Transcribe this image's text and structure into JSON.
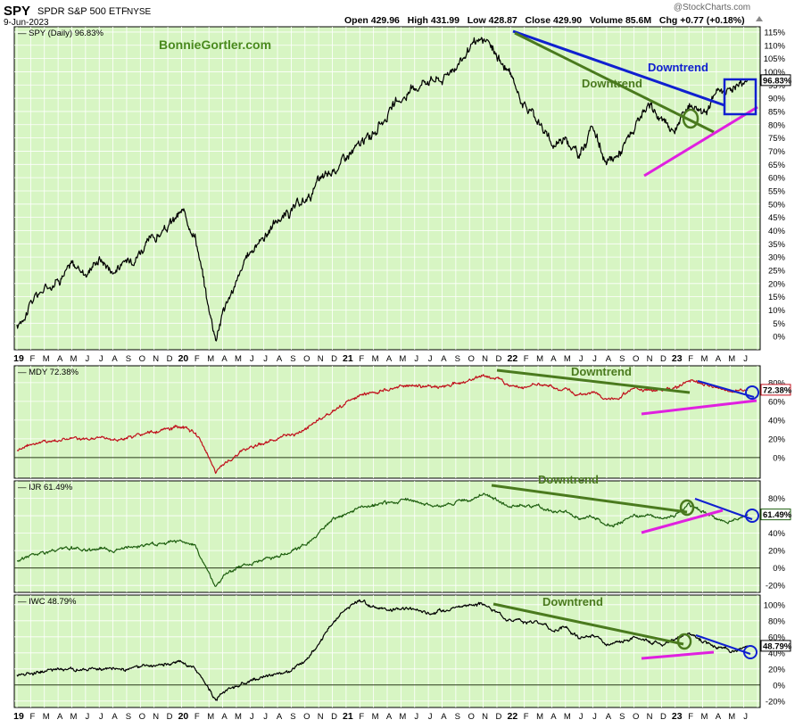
{
  "header": {
    "symbol": "SPY",
    "name": "SPDR S&P 500 ETF",
    "exchange": "NYSE",
    "date": "9-Jun-2023",
    "quote": "Open 429.96   High 431.99   Low 428.87   Close 429.90   Volume 85.6M   Chg +0.77 (+0.18%)",
    "quote_arrow": "up-arrow-icon",
    "logo": "@StockCharts.com",
    "watermark": "BonnieGortler.com"
  },
  "colors": {
    "panel_bg": "#d7f5c3",
    "grid": "#ffffff",
    "spy_line": "#000000",
    "mdy_line": "#c0101c",
    "ijr_line": "#1f5f10",
    "iwc_line": "#000000",
    "downtrend_green": "#4a7a1e",
    "downtrend_blue": "#1020d0",
    "uptrend_magenta": "#e020e0"
  },
  "x_axis": {
    "labels": [
      "19",
      "F",
      "M",
      "A",
      "M",
      "J",
      "J",
      "A",
      "S",
      "O",
      "N",
      "D",
      "20",
      "F",
      "M",
      "A",
      "M",
      "J",
      "J",
      "A",
      "S",
      "O",
      "N",
      "D",
      "21",
      "F",
      "M",
      "A",
      "M",
      "J",
      "J",
      "A",
      "S",
      "O",
      "N",
      "D",
      "22",
      "F",
      "M",
      "A",
      "M",
      "J",
      "J",
      "A",
      "S",
      "O",
      "N",
      "D",
      "23",
      "F",
      "M",
      "A",
      "M",
      "J"
    ]
  },
  "chart_data": [
    {
      "type": "line",
      "legend": "SPY (Daily) 96.83%",
      "last_value_label": "96.83%",
      "ylim": [
        -5,
        117
      ],
      "yticks": [
        "0%",
        "5%",
        "10%",
        "15%",
        "20%",
        "25%",
        "30%",
        "35%",
        "40%",
        "45%",
        "50%",
        "55%",
        "60%",
        "65%",
        "70%",
        "75%",
        "80%",
        "85%",
        "90%",
        "95%",
        "100%",
        "105%",
        "110%",
        "115%"
      ],
      "x_months": [
        0,
        1,
        2,
        3,
        4,
        5,
        6,
        7,
        8,
        9,
        10,
        11,
        12,
        13,
        14,
        14.5,
        15,
        16,
        17,
        18,
        19,
        20,
        21,
        22,
        23,
        24,
        25,
        26,
        27,
        28,
        29,
        30,
        31,
        32,
        33,
        34,
        35,
        36,
        37,
        38,
        39,
        40,
        41,
        42,
        43,
        44,
        45,
        46,
        47,
        48,
        49,
        50,
        51,
        52,
        53.3
      ],
      "values": [
        3,
        13,
        18,
        22,
        27,
        24,
        30,
        25,
        28,
        33,
        37,
        41,
        47,
        39,
        10,
        0,
        10,
        20,
        32,
        38,
        44,
        47,
        51,
        58,
        62,
        68,
        72,
        77,
        84,
        89,
        94,
        98,
        97,
        103,
        108,
        112,
        106,
        98,
        88,
        82,
        72,
        76,
        68,
        80,
        64,
        70,
        78,
        86,
        82,
        78,
        88,
        86,
        91,
        94,
        96.83
      ],
      "annotations": [
        {
          "text": "Downtrend",
          "color": "#4a7a1e"
        },
        {
          "text": "Downtrend",
          "color": "#1020d0"
        }
      ]
    },
    {
      "type": "line",
      "legend": "MDY 72.38%",
      "last_value_label": "72.38%",
      "ylim": [
        -22,
        98
      ],
      "yticks": [
        "0%",
        "20%",
        "40%",
        "60%",
        "80%"
      ],
      "x_months": [
        0,
        1,
        2,
        3,
        4,
        5,
        6,
        7,
        8,
        9,
        10,
        11,
        12,
        13,
        14,
        14.5,
        15,
        16,
        17,
        18,
        19,
        20,
        21,
        22,
        23,
        24,
        25,
        26,
        27,
        28,
        29,
        30,
        31,
        32,
        33,
        34,
        35,
        36,
        37,
        38,
        39,
        40,
        41,
        42,
        43,
        44,
        45,
        46,
        47,
        48,
        49,
        50,
        51,
        52,
        53.3
      ],
      "values": [
        8,
        15,
        17,
        19,
        21,
        18,
        22,
        19,
        21,
        24,
        27,
        30,
        33,
        26,
        2,
        -16,
        -8,
        2,
        12,
        16,
        20,
        24,
        30,
        40,
        50,
        58,
        65,
        70,
        72,
        76,
        78,
        76,
        76,
        80,
        82,
        88,
        84,
        78,
        76,
        78,
        74,
        74,
        66,
        70,
        62,
        66,
        74,
        72,
        74,
        74,
        84,
        78,
        74,
        70,
        72.38
      ],
      "annotations": [
        {
          "text": "Downtrend",
          "color": "#4a7a1e"
        }
      ]
    },
    {
      "type": "line",
      "legend": "IJR 61.49%",
      "last_value_label": "61.49%",
      "ylim": [
        -28,
        100
      ],
      "yticks": [
        "-20%",
        "0%",
        "20%",
        "40%",
        "60%",
        "80%"
      ],
      "x_months": [
        0,
        1,
        2,
        3,
        4,
        5,
        6,
        7,
        8,
        9,
        10,
        11,
        12,
        13,
        14,
        14.5,
        15,
        16,
        17,
        18,
        19,
        20,
        21,
        22,
        23,
        24,
        25,
        26,
        27,
        28,
        29,
        30,
        31,
        32,
        33,
        34,
        35,
        36,
        37,
        38,
        39,
        40,
        41,
        42,
        43,
        44,
        45,
        46,
        47,
        48,
        49,
        50,
        51,
        52,
        53.3
      ],
      "values": [
        8,
        15,
        18,
        20,
        22,
        20,
        23,
        21,
        23,
        25,
        28,
        30,
        32,
        24,
        -5,
        -22,
        -10,
        0,
        6,
        10,
        14,
        18,
        26,
        40,
        54,
        62,
        68,
        72,
        74,
        78,
        76,
        72,
        72,
        76,
        78,
        86,
        78,
        72,
        70,
        70,
        64,
        66,
        56,
        60,
        48,
        52,
        62,
        60,
        58,
        60,
        72,
        64,
        56,
        52,
        61.49
      ],
      "annotations": [
        {
          "text": "Downtrend",
          "color": "#4a7a1e"
        }
      ]
    },
    {
      "type": "line",
      "legend": "IWC 48.79%",
      "last_value_label": "48.79%",
      "ylim": [
        -28,
        112
      ],
      "yticks": [
        "-20%",
        "0%",
        "20%",
        "40%",
        "60%",
        "80%",
        "100%"
      ],
      "x_months": [
        0,
        1,
        2,
        3,
        4,
        5,
        6,
        7,
        8,
        9,
        10,
        11,
        12,
        13,
        14,
        14.5,
        15,
        16,
        17,
        18,
        19,
        20,
        21,
        22,
        23,
        24,
        25,
        26,
        27,
        28,
        29,
        30,
        31,
        32,
        33,
        34,
        35,
        36,
        37,
        38,
        39,
        40,
        41,
        42,
        43,
        44,
        45,
        46,
        47,
        48,
        49,
        50,
        51,
        52,
        53.3
      ],
      "values": [
        12,
        16,
        18,
        20,
        20,
        18,
        20,
        18,
        20,
        22,
        24,
        26,
        28,
        22,
        -4,
        -18,
        -8,
        -2,
        4,
        10,
        14,
        18,
        28,
        50,
        78,
        96,
        104,
        98,
        92,
        96,
        94,
        90,
        92,
        98,
        100,
        100,
        90,
        82,
        78,
        80,
        68,
        72,
        58,
        62,
        48,
        52,
        60,
        56,
        52,
        56,
        64,
        56,
        48,
        42,
        48.79
      ],
      "annotations": [
        {
          "text": "Downtrend",
          "color": "#4a7a1e"
        }
      ]
    }
  ]
}
